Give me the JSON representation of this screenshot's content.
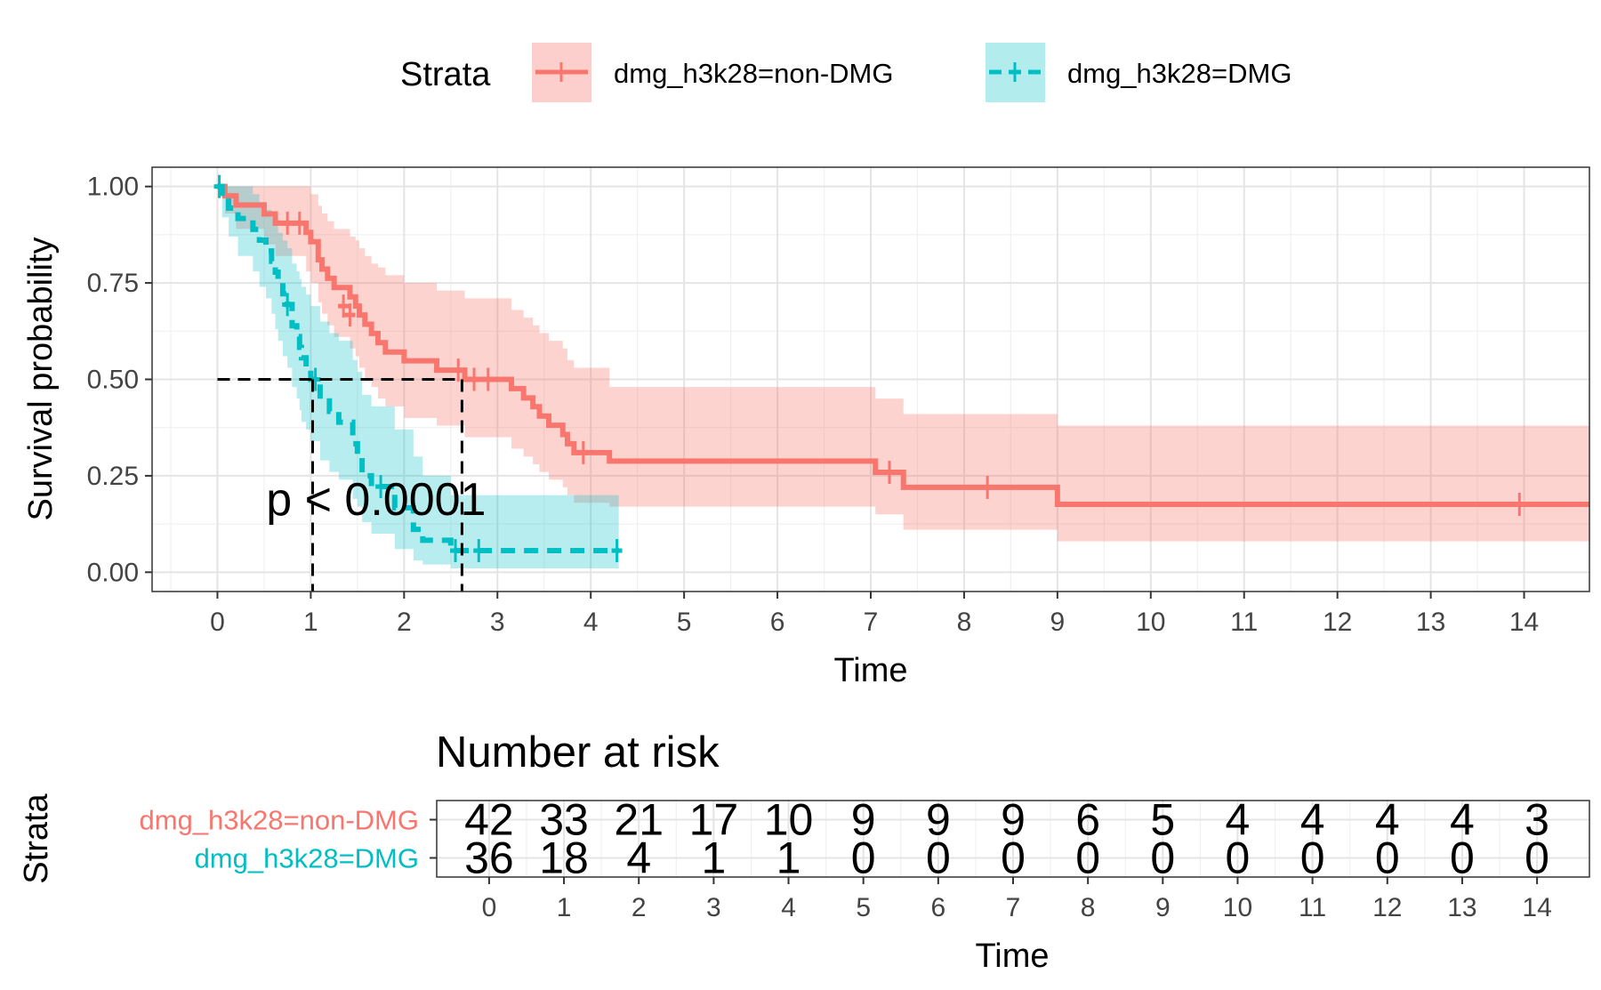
{
  "legend": {
    "title": "Strata",
    "items": [
      {
        "label": "dmg_h3k28=non-DMG",
        "color": "#F8766D",
        "dashed": false
      },
      {
        "label": "dmg_h3k28=DMG",
        "color": "#00BFC4",
        "dashed": true
      }
    ]
  },
  "chart_data": [
    {
      "type": "line",
      "subtype": "kaplan-meier",
      "xlabel": "Time",
      "ylabel": "Survival probability",
      "xlim": [
        -0.7,
        14.7
      ],
      "ylim": [
        -0.05,
        1.05
      ],
      "xticks": [
        "0",
        "1",
        "2",
        "3",
        "4",
        "5",
        "6",
        "7",
        "8",
        "9",
        "10",
        "11",
        "12",
        "13",
        "14"
      ],
      "yticks": [
        "0.00",
        "0.25",
        "0.50",
        "0.75",
        "1.00"
      ],
      "grid": true,
      "legend_position": "top",
      "annotation": "p < 0.0001",
      "annotation_pos": [
        1.7,
        0.19
      ],
      "median_lines": [
        1.02,
        2.62
      ],
      "series": [
        {
          "name": "dmg_h3k28=non-DMG",
          "color": "#F8766D",
          "dashed": false,
          "steps": [
            [
              0,
              1.0
            ],
            [
              0.08,
              0.976
            ],
            [
              0.2,
              0.952
            ],
            [
              0.5,
              0.929
            ],
            [
              0.62,
              0.905
            ],
            [
              0.95,
              0.881
            ],
            [
              1.0,
              0.857
            ],
            [
              1.08,
              0.81
            ],
            [
              1.12,
              0.786
            ],
            [
              1.18,
              0.762
            ],
            [
              1.25,
              0.738
            ],
            [
              1.42,
              0.714
            ],
            [
              1.48,
              0.69
            ],
            [
              1.52,
              0.667
            ],
            [
              1.58,
              0.643
            ],
            [
              1.65,
              0.619
            ],
            [
              1.72,
              0.595
            ],
            [
              1.8,
              0.571
            ],
            [
              2.0,
              0.548
            ],
            [
              2.35,
              0.524
            ],
            [
              2.65,
              0.5
            ],
            [
              3.15,
              0.476
            ],
            [
              3.28,
              0.452
            ],
            [
              3.38,
              0.429
            ],
            [
              3.45,
              0.405
            ],
            [
              3.55,
              0.381
            ],
            [
              3.7,
              0.357
            ],
            [
              3.75,
              0.333
            ],
            [
              3.82,
              0.31
            ],
            [
              4.2,
              0.288
            ],
            [
              7.05,
              0.259
            ],
            [
              7.35,
              0.22
            ],
            [
              9.0,
              0.176
            ],
            [
              14.7,
              0.176
            ]
          ],
          "lower": [
            [
              0,
              1.0
            ],
            [
              0.08,
              0.93
            ],
            [
              0.2,
              0.89
            ],
            [
              0.5,
              0.85
            ],
            [
              0.62,
              0.82
            ],
            [
              0.95,
              0.78
            ],
            [
              1.0,
              0.75
            ],
            [
              1.08,
              0.7
            ],
            [
              1.12,
              0.67
            ],
            [
              1.18,
              0.64
            ],
            [
              1.25,
              0.61
            ],
            [
              1.42,
              0.58
            ],
            [
              1.48,
              0.56
            ],
            [
              1.52,
              0.53
            ],
            [
              1.58,
              0.5
            ],
            [
              1.65,
              0.48
            ],
            [
              1.72,
              0.45
            ],
            [
              1.8,
              0.43
            ],
            [
              2.0,
              0.4
            ],
            [
              2.35,
              0.38
            ],
            [
              2.65,
              0.35
            ],
            [
              3.15,
              0.32
            ],
            [
              3.28,
              0.3
            ],
            [
              3.38,
              0.28
            ],
            [
              3.45,
              0.26
            ],
            [
              3.55,
              0.24
            ],
            [
              3.7,
              0.22
            ],
            [
              3.75,
              0.2
            ],
            [
              3.82,
              0.18
            ],
            [
              4.2,
              0.17
            ],
            [
              7.05,
              0.15
            ],
            [
              7.35,
              0.11
            ],
            [
              9.0,
              0.08
            ],
            [
              14.7,
              0.08
            ]
          ],
          "upper": [
            [
              0,
              1.0
            ],
            [
              0.08,
              1.0
            ],
            [
              0.2,
              1.0
            ],
            [
              0.5,
              1.0
            ],
            [
              0.62,
              1.0
            ],
            [
              0.95,
              1.0
            ],
            [
              1.0,
              0.98
            ],
            [
              1.08,
              0.95
            ],
            [
              1.12,
              0.93
            ],
            [
              1.18,
              0.91
            ],
            [
              1.25,
              0.89
            ],
            [
              1.42,
              0.87
            ],
            [
              1.48,
              0.86
            ],
            [
              1.52,
              0.84
            ],
            [
              1.58,
              0.82
            ],
            [
              1.65,
              0.8
            ],
            [
              1.72,
              0.79
            ],
            [
              1.8,
              0.77
            ],
            [
              2.0,
              0.75
            ],
            [
              2.35,
              0.73
            ],
            [
              2.65,
              0.71
            ],
            [
              3.15,
              0.68
            ],
            [
              3.28,
              0.66
            ],
            [
              3.38,
              0.64
            ],
            [
              3.45,
              0.62
            ],
            [
              3.55,
              0.6
            ],
            [
              3.7,
              0.58
            ],
            [
              3.75,
              0.55
            ],
            [
              3.82,
              0.53
            ],
            [
              4.2,
              0.48
            ],
            [
              7.05,
              0.45
            ],
            [
              7.35,
              0.41
            ],
            [
              9.0,
              0.38
            ],
            [
              14.7,
              0.38
            ]
          ],
          "censors": [
            [
              0.75,
              0.905
            ],
            [
              0.88,
              0.905
            ],
            [
              1.35,
              0.69
            ],
            [
              1.42,
              0.667
            ],
            [
              2.58,
              0.524
            ],
            [
              2.75,
              0.5
            ],
            [
              2.9,
              0.5
            ],
            [
              3.92,
              0.31
            ],
            [
              7.2,
              0.259
            ],
            [
              8.25,
              0.22
            ],
            [
              13.95,
              0.176
            ]
          ]
        },
        {
          "name": "dmg_h3k28=DMG",
          "color": "#00BFC4",
          "dashed": true,
          "steps": [
            [
              0,
              1.0
            ],
            [
              0.05,
              0.972
            ],
            [
              0.12,
              0.944
            ],
            [
              0.22,
              0.917
            ],
            [
              0.38,
              0.889
            ],
            [
              0.45,
              0.861
            ],
            [
              0.52,
              0.833
            ],
            [
              0.58,
              0.806
            ],
            [
              0.62,
              0.778
            ],
            [
              0.65,
              0.75
            ],
            [
              0.7,
              0.722
            ],
            [
              0.75,
              0.694
            ],
            [
              0.8,
              0.639
            ],
            [
              0.85,
              0.611
            ],
            [
              0.88,
              0.583
            ],
            [
              0.9,
              0.556
            ],
            [
              0.95,
              0.528
            ],
            [
              1.0,
              0.5
            ],
            [
              1.1,
              0.444
            ],
            [
              1.2,
              0.417
            ],
            [
              1.3,
              0.389
            ],
            [
              1.45,
              0.333
            ],
            [
              1.5,
              0.306
            ],
            [
              1.55,
              0.25
            ],
            [
              1.65,
              0.222
            ],
            [
              1.9,
              0.167
            ],
            [
              2.1,
              0.111
            ],
            [
              2.2,
              0.083
            ],
            [
              2.5,
              0.056
            ],
            [
              4.3,
              0.056
            ]
          ],
          "lower": [
            [
              0,
              1.0
            ],
            [
              0.05,
              0.92
            ],
            [
              0.12,
              0.87
            ],
            [
              0.22,
              0.82
            ],
            [
              0.38,
              0.78
            ],
            [
              0.45,
              0.74
            ],
            [
              0.52,
              0.71
            ],
            [
              0.58,
              0.67
            ],
            [
              0.62,
              0.63
            ],
            [
              0.65,
              0.6
            ],
            [
              0.7,
              0.56
            ],
            [
              0.75,
              0.53
            ],
            [
              0.8,
              0.48
            ],
            [
              0.85,
              0.45
            ],
            [
              0.88,
              0.42
            ],
            [
              0.9,
              0.39
            ],
            [
              0.95,
              0.37
            ],
            [
              1.0,
              0.34
            ],
            [
              1.1,
              0.29
            ],
            [
              1.2,
              0.26
            ],
            [
              1.3,
              0.24
            ],
            [
              1.45,
              0.19
            ],
            [
              1.5,
              0.17
            ],
            [
              1.55,
              0.13
            ],
            [
              1.65,
              0.1
            ],
            [
              1.9,
              0.06
            ],
            [
              2.1,
              0.03
            ],
            [
              2.2,
              0.02
            ],
            [
              2.5,
              0.01
            ],
            [
              4.3,
              0.01
            ]
          ],
          "upper": [
            [
              0,
              1.0
            ],
            [
              0.05,
              1.0
            ],
            [
              0.12,
              1.0
            ],
            [
              0.22,
              1.0
            ],
            [
              0.38,
              0.98
            ],
            [
              0.45,
              0.96
            ],
            [
              0.52,
              0.94
            ],
            [
              0.58,
              0.92
            ],
            [
              0.62,
              0.9
            ],
            [
              0.65,
              0.88
            ],
            [
              0.7,
              0.86
            ],
            [
              0.75,
              0.84
            ],
            [
              0.8,
              0.8
            ],
            [
              0.85,
              0.78
            ],
            [
              0.88,
              0.76
            ],
            [
              0.9,
              0.74
            ],
            [
              0.95,
              0.72
            ],
            [
              1.0,
              0.69
            ],
            [
              1.1,
              0.65
            ],
            [
              1.2,
              0.62
            ],
            [
              1.3,
              0.6
            ],
            [
              1.45,
              0.55
            ],
            [
              1.5,
              0.52
            ],
            [
              1.55,
              0.46
            ],
            [
              1.65,
              0.43
            ],
            [
              1.9,
              0.37
            ],
            [
              2.1,
              0.3
            ],
            [
              2.2,
              0.25
            ],
            [
              2.5,
              0.2
            ],
            [
              4.3,
              0.2
            ]
          ],
          "censors": [
            [
              0.02,
              1.0
            ],
            [
              0.75,
              0.694
            ],
            [
              1.05,
              0.5
            ],
            [
              1.75,
              0.222
            ],
            [
              2.55,
              0.056
            ],
            [
              2.8,
              0.056
            ],
            [
              4.28,
              0.056
            ]
          ]
        }
      ]
    },
    {
      "type": "table",
      "title": "Number at risk",
      "xlabel": "Time",
      "ylabel": "Strata",
      "xlim": [
        -0.7,
        14.7
      ],
      "xticks": [
        "0",
        "1",
        "2",
        "3",
        "4",
        "5",
        "6",
        "7",
        "8",
        "9",
        "10",
        "11",
        "12",
        "13",
        "14"
      ],
      "rows": [
        {
          "name": "dmg_h3k28=non-DMG",
          "color": "#F8766D",
          "values": [
            "42",
            "33",
            "21",
            "17",
            "10",
            "9",
            "9",
            "9",
            "6",
            "5",
            "4",
            "4",
            "4",
            "4",
            "3"
          ]
        },
        {
          "name": "dmg_h3k28=DMG",
          "color": "#00BFC4",
          "values": [
            "36",
            "18",
            "4",
            "1",
            "1",
            "0",
            "0",
            "0",
            "0",
            "0",
            "0",
            "0",
            "0",
            "0",
            "0"
          ]
        }
      ]
    }
  ]
}
